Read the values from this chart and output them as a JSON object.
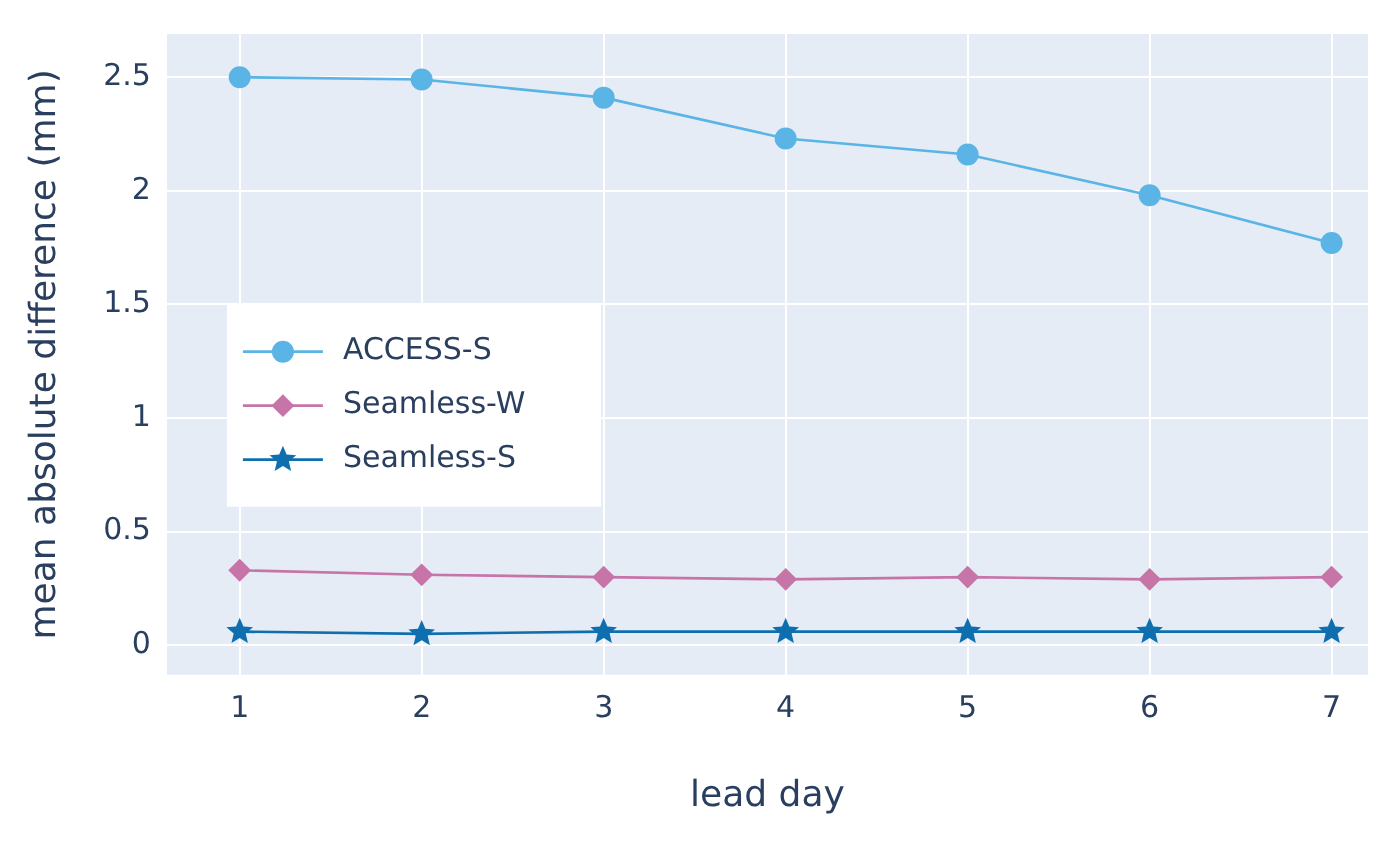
{
  "chart_data": {
    "type": "line",
    "xlabel": "lead day",
    "ylabel": "mean absolute difference (mm)",
    "x": [
      1,
      2,
      3,
      4,
      5,
      6,
      7
    ],
    "series": [
      {
        "name": "ACCESS-S",
        "color": "#5ab4e5",
        "marker": "circle",
        "values": [
          2.5,
          2.49,
          2.41,
          2.23,
          2.16,
          1.98,
          1.77
        ]
      },
      {
        "name": "Seamless-W",
        "color": "#c774a8",
        "marker": "diamond",
        "values": [
          0.33,
          0.31,
          0.3,
          0.29,
          0.3,
          0.29,
          0.3
        ]
      },
      {
        "name": "Seamless-S",
        "color": "#0f6fae",
        "marker": "star",
        "values": [
          0.06,
          0.05,
          0.06,
          0.06,
          0.06,
          0.06,
          0.06
        ]
      }
    ],
    "xlim": [
      0.6,
      7.2
    ],
    "xticks": [
      1,
      2,
      3,
      4,
      5,
      6,
      7
    ],
    "ylim": [
      -0.13,
      2.69
    ],
    "yticks": [
      0,
      0.5,
      1,
      1.5,
      2,
      2.5
    ],
    "grid": true,
    "legend": "left",
    "line_style": "solid"
  }
}
